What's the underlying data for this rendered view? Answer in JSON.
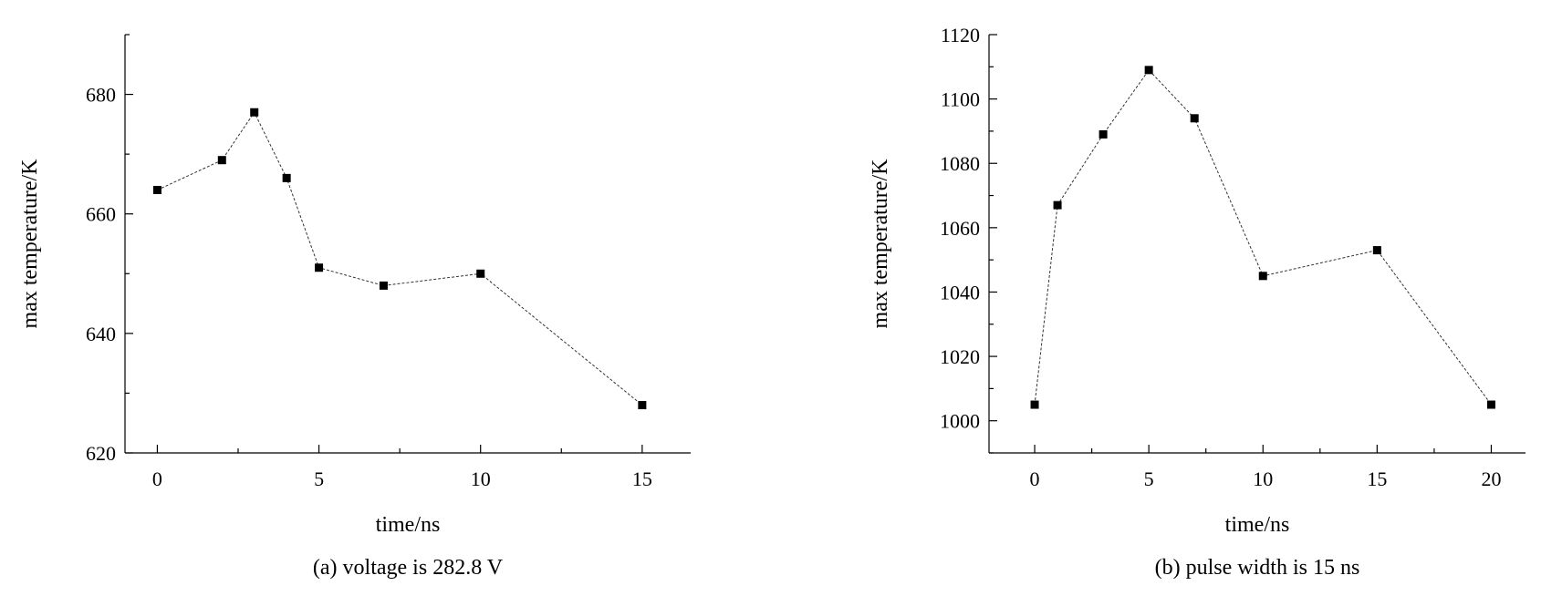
{
  "chart_data": [
    {
      "type": "line",
      "caption": "(a) voltage is 282.8 V",
      "xlabel": "time/ns",
      "ylabel": "max temperature/K",
      "xlim": [
        -1,
        16.5
      ],
      "ylim": [
        620,
        690
      ],
      "xticks": [
        0,
        5,
        10,
        15
      ],
      "yticks": [
        620,
        640,
        660,
        680
      ],
      "series": [
        {
          "x": [
            0,
            2,
            3,
            4,
            5,
            7,
            10,
            15
          ],
          "y": [
            664,
            669,
            677,
            666,
            651,
            648,
            650,
            628
          ]
        }
      ]
    },
    {
      "type": "line",
      "caption": "(b) pulse width is 15 ns",
      "xlabel": "time/ns",
      "ylabel": "max temperature/K",
      "xlim": [
        -2,
        21.5
      ],
      "ylim": [
        990,
        1120
      ],
      "xticks": [
        0,
        5,
        10,
        15,
        20
      ],
      "yticks": [
        1000,
        1020,
        1040,
        1060,
        1080,
        1100,
        1120
      ],
      "series": [
        {
          "x": [
            0,
            1,
            3,
            5,
            7,
            10,
            15,
            20
          ],
          "y": [
            1005,
            1067,
            1089,
            1109,
            1094,
            1045,
            1053,
            1005
          ]
        }
      ]
    }
  ]
}
